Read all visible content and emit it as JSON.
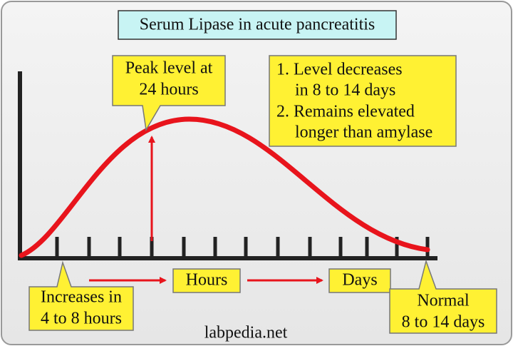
{
  "title": "Serum Lipase in acute pancreatitis",
  "peak_callout": {
    "lines": [
      "Peak level at",
      "24 hours"
    ]
  },
  "notes": {
    "lines": [
      "1. Level decreases",
      "in 8 to 14 days",
      "2. Remains elevated",
      "longer than amylase"
    ]
  },
  "axis_labels": {
    "hours": "Hours",
    "days": "Days"
  },
  "increase_callout": {
    "lines": [
      "Increases in",
      "4 to 8 hours"
    ]
  },
  "normal_callout": {
    "lines": [
      "Normal",
      "8 to 14 days"
    ]
  },
  "footer": "labpedia.net"
}
